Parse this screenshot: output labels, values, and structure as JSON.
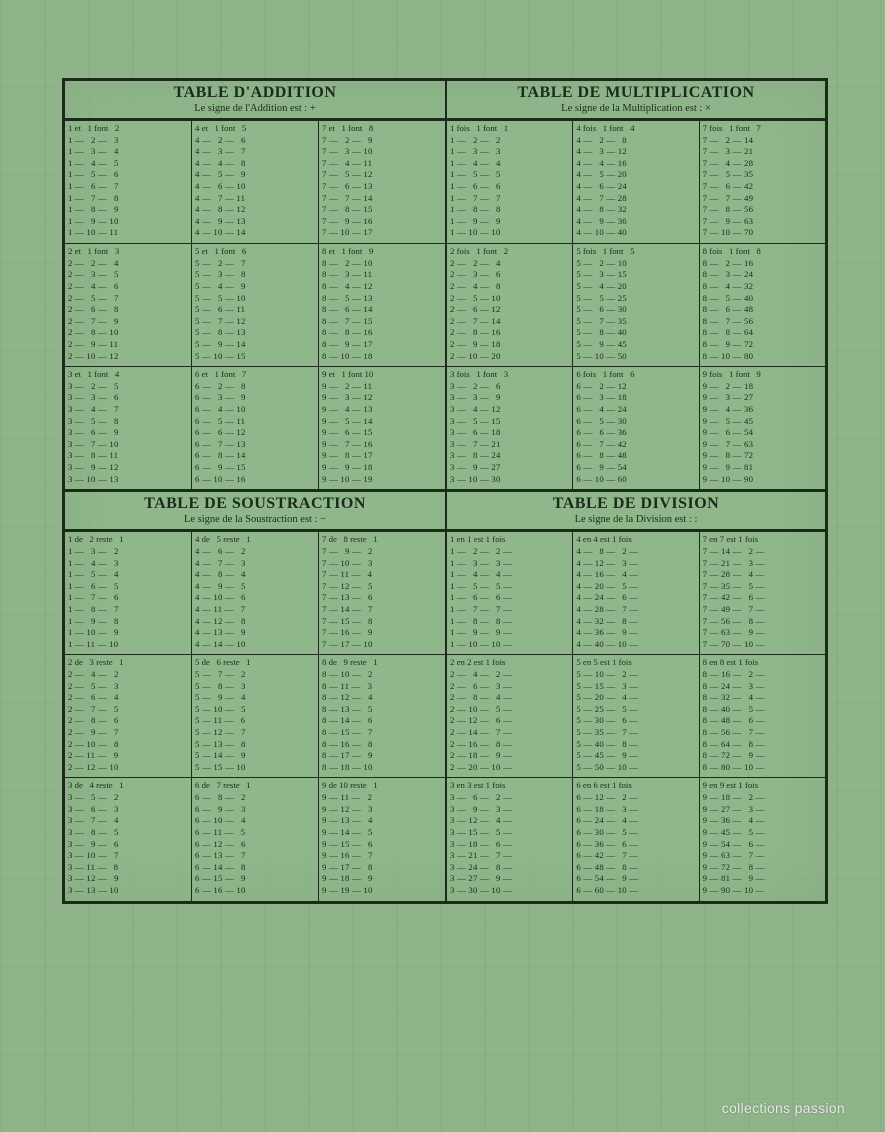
{
  "ops": [
    {
      "title": "TABLE D'ADDITION",
      "subtitle": "Le signe de l'Addition est : +",
      "word_first": "et",
      "word_unit": "font",
      "group_bases": [
        [
          1,
          4,
          7
        ],
        [
          2,
          5,
          8
        ],
        [
          3,
          6,
          9
        ]
      ],
      "rows_per_col": 10,
      "row_start": 1
    },
    {
      "title": "TABLE DE MULTIPLICATION",
      "subtitle": "Le signe de la Multiplication est : ×",
      "word_first": "fois",
      "word_unit": "font",
      "group_bases": [
        [
          1,
          4,
          7
        ],
        [
          2,
          5,
          8
        ],
        [
          3,
          6,
          9
        ]
      ],
      "rows_per_col": 10,
      "row_start": 1
    },
    {
      "title": "TABLE DE SOUSTRACTION",
      "subtitle": "Le signe de la Soustraction est : −",
      "word_first": "de",
      "word_unit": "reste",
      "group_bases": [
        [
          1,
          4,
          7
        ],
        [
          2,
          5,
          8
        ],
        [
          3,
          6,
          9
        ]
      ],
      "rows_per_col": 10,
      "row_start": 1
    },
    {
      "title": "TABLE DE DIVISION",
      "subtitle": "Le signe de la Division est : :",
      "word_first": "en",
      "word_mid": "est",
      "word_unit": "fois",
      "group_bases": [
        [
          1,
          4,
          7
        ],
        [
          2,
          5,
          8
        ],
        [
          3,
          6,
          9
        ]
      ],
      "rows_per_col": 10,
      "row_start": 1
    }
  ],
  "layout": {
    "pairs": [
      [
        0,
        1
      ],
      [
        2,
        3
      ]
    ]
  },
  "colors": {
    "ink": "#1a2b1a",
    "paper": "#8fb48a"
  },
  "watermark": "collections passion"
}
